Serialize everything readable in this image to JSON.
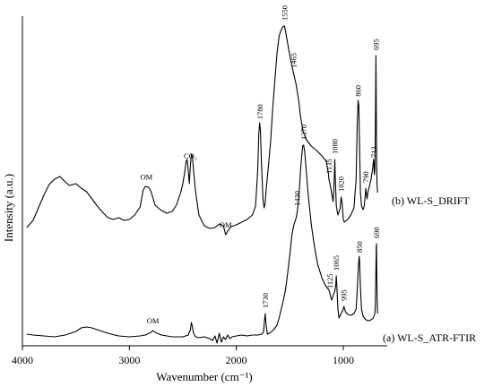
{
  "chart_data": {
    "type": "line",
    "xlabel": "Wavenumber (cm⁻¹)",
    "ylabel": "Intensity (a.u.)",
    "xlim": [
      4000,
      650
    ],
    "x_reversed": true,
    "x_ticks": [
      {
        "value": 4000,
        "label": "4000"
      },
      {
        "value": 3000,
        "label": "3000"
      },
      {
        "value": 2000,
        "label": "2000"
      },
      {
        "value": 1000,
        "label": "1000"
      }
    ],
    "grid": false,
    "series": [
      {
        "name": "(b) WL-S_DRIFT",
        "points": [
          [
            3960,
            254
          ],
          [
            3900,
            246
          ],
          [
            3850,
            232
          ],
          [
            3800,
            218
          ],
          [
            3750,
            206
          ],
          [
            3700,
            200
          ],
          [
            3650,
            197
          ],
          [
            3600,
            203
          ],
          [
            3560,
            207
          ],
          [
            3500,
            205
          ],
          [
            3450,
            210
          ],
          [
            3400,
            214
          ],
          [
            3350,
            222
          ],
          [
            3300,
            230
          ],
          [
            3250,
            237
          ],
          [
            3200,
            243
          ],
          [
            3150,
            245
          ],
          [
            3100,
            243
          ],
          [
            3050,
            246
          ],
          [
            3000,
            245
          ],
          [
            2950,
            240
          ],
          [
            2900,
            231
          ],
          [
            2870,
            212
          ],
          [
            2850,
            208
          ],
          [
            2820,
            209
          ],
          [
            2800,
            213
          ],
          [
            2780,
            221
          ],
          [
            2760,
            229
          ],
          [
            2700,
            235
          ],
          [
            2650,
            238
          ],
          [
            2600,
            236
          ],
          [
            2560,
            229
          ],
          [
            2520,
            215
          ],
          [
            2500,
            205
          ],
          [
            2480,
            190
          ],
          [
            2470,
            180
          ],
          [
            2460,
            178
          ],
          [
            2450,
            190
          ],
          [
            2440,
            205
          ],
          [
            2430,
            185
          ],
          [
            2420,
            172
          ],
          [
            2410,
            175
          ],
          [
            2400,
            190
          ],
          [
            2380,
            215
          ],
          [
            2350,
            240
          ],
          [
            2300,
            252
          ],
          [
            2250,
            255
          ],
          [
            2200,
            254
          ],
          [
            2160,
            250
          ],
          [
            2120,
            252
          ],
          [
            2100,
            262
          ],
          [
            2080,
            258
          ],
          [
            2050,
            253
          ],
          [
            2000,
            251
          ],
          [
            1950,
            248
          ],
          [
            1900,
            245
          ],
          [
            1850,
            240
          ],
          [
            1820,
            230
          ],
          [
            1800,
            190
          ],
          [
            1790,
            150
          ],
          [
            1782,
            137
          ],
          [
            1775,
            145
          ],
          [
            1765,
            182
          ],
          [
            1750,
            224
          ],
          [
            1740,
            232
          ],
          [
            1730,
            226
          ],
          [
            1720,
            210
          ],
          [
            1700,
            185
          ],
          [
            1680,
            158
          ],
          [
            1660,
            122
          ],
          [
            1640,
            90
          ],
          [
            1620,
            60
          ],
          [
            1600,
            40
          ],
          [
            1580,
            33
          ],
          [
            1565,
            30
          ],
          [
            1550,
            29
          ],
          [
            1540,
            35
          ],
          [
            1530,
            42
          ],
          [
            1510,
            55
          ],
          [
            1490,
            68
          ],
          [
            1465,
            82
          ],
          [
            1440,
            95
          ],
          [
            1420,
            110
          ],
          [
            1400,
            130
          ],
          [
            1380,
            145
          ],
          [
            1350,
            155
          ],
          [
            1300,
            163
          ],
          [
            1250,
            168
          ],
          [
            1200,
            174
          ],
          [
            1160,
            180
          ],
          [
            1140,
            193
          ],
          [
            1135,
            200
          ],
          [
            1125,
            205
          ],
          [
            1110,
            215
          ],
          [
            1095,
            225
          ],
          [
            1085,
            200
          ],
          [
            1080,
            178
          ],
          [
            1075,
            200
          ],
          [
            1065,
            230
          ],
          [
            1050,
            240
          ],
          [
            1030,
            233
          ],
          [
            1020,
            220
          ],
          [
            1010,
            228
          ],
          [
            1000,
            245
          ],
          [
            990,
            248
          ],
          [
            960,
            245
          ],
          [
            930,
            240
          ],
          [
            900,
            232
          ],
          [
            880,
            200
          ],
          [
            870,
            140
          ],
          [
            862,
            112
          ],
          [
            855,
            118
          ],
          [
            848,
            160
          ],
          [
            840,
            215
          ],
          [
            830,
            230
          ],
          [
            815,
            234
          ],
          [
            805,
            230
          ],
          [
            795,
            218
          ],
          [
            790,
            210
          ],
          [
            785,
            216
          ],
          [
            778,
            222
          ],
          [
            770,
            215
          ],
          [
            760,
            210
          ],
          [
            750,
            205
          ],
          [
            740,
            200
          ],
          [
            735,
            195
          ],
          [
            725,
            188
          ],
          [
            718,
            178
          ],
          [
            713,
            182
          ],
          [
            710,
            195
          ],
          [
            705,
            190
          ],
          [
            700,
            140
          ],
          [
            697,
            90
          ],
          [
            695,
            62
          ],
          [
            693,
            90
          ],
          [
            690,
            160
          ],
          [
            685,
            205
          ],
          [
            680,
            215
          ]
        ],
        "peak_labels": [
          {
            "x": 2840,
            "text": "OM"
          },
          {
            "x": 2430,
            "text": "CO₂"
          },
          {
            "x": 2100,
            "text": "OM"
          },
          {
            "x": 1780,
            "text": "1780"
          },
          {
            "x": 1550,
            "text": "1550"
          },
          {
            "x": 1465,
            "text": "1465"
          },
          {
            "x": 1135,
            "text": "1135"
          },
          {
            "x": 1080,
            "text": "1080"
          },
          {
            "x": 1020,
            "text": "1020"
          },
          {
            "x": 860,
            "text": "860"
          },
          {
            "x": 790,
            "text": "790"
          },
          {
            "x": 713,
            "text": "713"
          },
          {
            "x": 695,
            "text": "695"
          }
        ]
      },
      {
        "name": "(a) WL-S_ATR-FTIR",
        "points": [
          [
            3960,
            373
          ],
          [
            3900,
            374
          ],
          [
            3800,
            375
          ],
          [
            3700,
            376
          ],
          [
            3600,
            374
          ],
          [
            3500,
            370
          ],
          [
            3450,
            366
          ],
          [
            3400,
            365
          ],
          [
            3350,
            366
          ],
          [
            3300,
            368
          ],
          [
            3200,
            372
          ],
          [
            3100,
            375
          ],
          [
            3000,
            376
          ],
          [
            2900,
            375
          ],
          [
            2850,
            374
          ],
          [
            2800,
            371
          ],
          [
            2780,
            369
          ],
          [
            2760,
            371
          ],
          [
            2700,
            374
          ],
          [
            2600,
            376
          ],
          [
            2500,
            376
          ],
          [
            2450,
            374
          ],
          [
            2430,
            368
          ],
          [
            2420,
            360
          ],
          [
            2410,
            365
          ],
          [
            2400,
            372
          ],
          [
            2380,
            376
          ],
          [
            2350,
            377
          ],
          [
            2300,
            376
          ],
          [
            2250,
            378
          ],
          [
            2220,
            380
          ],
          [
            2200,
            375
          ],
          [
            2180,
            383
          ],
          [
            2160,
            372
          ],
          [
            2140,
            382
          ],
          [
            2120,
            376
          ],
          [
            2100,
            379
          ],
          [
            2080,
            374
          ],
          [
            2060,
            378
          ],
          [
            2040,
            376
          ],
          [
            2000,
            375
          ],
          [
            1950,
            374
          ],
          [
            1900,
            375
          ],
          [
            1850,
            374
          ],
          [
            1800,
            374
          ],
          [
            1760,
            373
          ],
          [
            1745,
            370
          ],
          [
            1738,
            360
          ],
          [
            1730,
            350
          ],
          [
            1722,
            362
          ],
          [
            1710,
            373
          ],
          [
            1690,
            372
          ],
          [
            1650,
            368
          ],
          [
            1620,
            363
          ],
          [
            1600,
            355
          ],
          [
            1580,
            345
          ],
          [
            1560,
            335
          ],
          [
            1540,
            323
          ],
          [
            1520,
            305
          ],
          [
            1500,
            285
          ],
          [
            1480,
            262
          ],
          [
            1460,
            250
          ],
          [
            1440,
            243
          ],
          [
            1430,
            236
          ],
          [
            1420,
            225
          ],
          [
            1410,
            210
          ],
          [
            1400,
            190
          ],
          [
            1390,
            175
          ],
          [
            1380,
            163
          ],
          [
            1375,
            162
          ],
          [
            1370,
            162
          ],
          [
            1360,
            170
          ],
          [
            1350,
            185
          ],
          [
            1330,
            215
          ],
          [
            1300,
            250
          ],
          [
            1270,
            275
          ],
          [
            1240,
            295
          ],
          [
            1200,
            310
          ],
          [
            1170,
            318
          ],
          [
            1140,
            323
          ],
          [
            1130,
            325
          ],
          [
            1125,
            328
          ],
          [
            1110,
            335
          ],
          [
            1095,
            330
          ],
          [
            1080,
            325
          ],
          [
            1070,
            318
          ],
          [
            1065,
            308
          ],
          [
            1060,
            320
          ],
          [
            1050,
            345
          ],
          [
            1040,
            355
          ],
          [
            1020,
            350
          ],
          [
            1000,
            345
          ],
          [
            995,
            342
          ],
          [
            980,
            348
          ],
          [
            960,
            351
          ],
          [
            930,
            352
          ],
          [
            900,
            350
          ],
          [
            880,
            345
          ],
          [
            870,
            325
          ],
          [
            860,
            300
          ],
          [
            852,
            286
          ],
          [
            848,
            290
          ],
          [
            840,
            320
          ],
          [
            830,
            345
          ],
          [
            815,
            353
          ],
          [
            790,
            357
          ],
          [
            760,
            358
          ],
          [
            740,
            357
          ],
          [
            720,
            355
          ],
          [
            705,
            350
          ],
          [
            700,
            340
          ],
          [
            695,
            300
          ],
          [
            692,
            275
          ],
          [
            690,
            272
          ],
          [
            688,
            290
          ],
          [
            685,
            325
          ],
          [
            680,
            350
          ]
        ],
        "peak_labels": [
          {
            "x": 2780,
            "text": "OM"
          },
          {
            "x": 1730,
            "text": "1730"
          },
          {
            "x": 1430,
            "text": "1430"
          },
          {
            "x": 1370,
            "text": "1370"
          },
          {
            "x": 1125,
            "text": "1125"
          },
          {
            "x": 1065,
            "text": "1065"
          },
          {
            "x": 995,
            "text": "995"
          },
          {
            "x": 850,
            "text": "850"
          },
          {
            "x": 690,
            "text": "690"
          }
        ]
      }
    ]
  }
}
